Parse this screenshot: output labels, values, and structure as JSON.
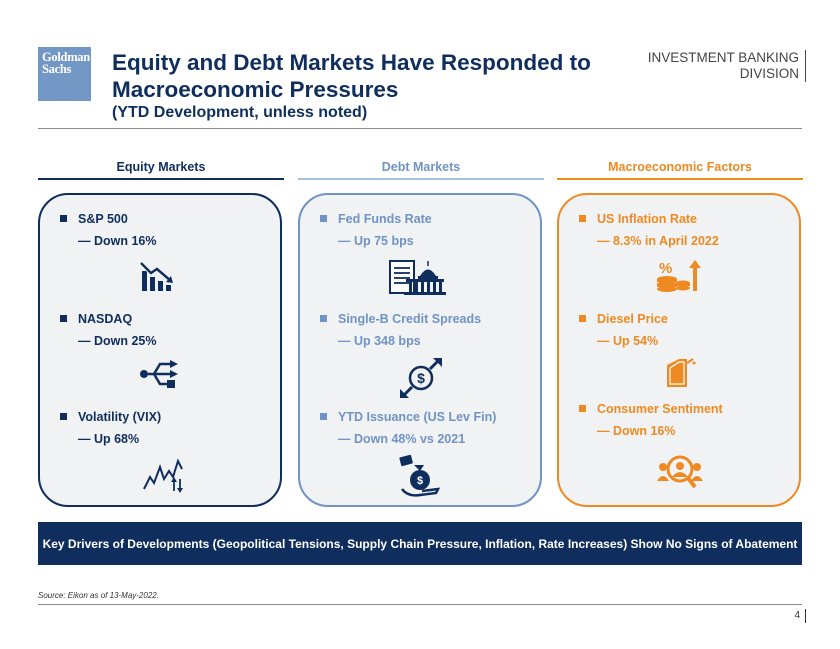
{
  "header": {
    "logo_line1": "Goldman",
    "logo_line2": "Sachs",
    "title": "Equity and Debt Markets Have Responded to Macroeconomic Pressures",
    "subtitle": "(YTD Development, unless noted)",
    "division_line1": "INVESTMENT BANKING",
    "division_line2": "DIVISION"
  },
  "columns": [
    {
      "heading": "Equity Markets",
      "items": [
        {
          "title": "S&P 500",
          "value": "— Down 16%",
          "icon": "chart-down-icon"
        },
        {
          "title": "NASDAQ",
          "value": "— Down 25%",
          "icon": "network-icon"
        },
        {
          "title": "Volatility (VIX)",
          "value": "— Up 68%",
          "icon": "volatility-icon"
        }
      ]
    },
    {
      "heading": "Debt Markets",
      "items": [
        {
          "title": "Fed Funds Rate",
          "value": "— Up 75 bps",
          "icon": "capitol-document-icon"
        },
        {
          "title": "Single-B Credit Spreads",
          "value": "— Up 348 bps",
          "icon": "dollar-arrows-icon"
        },
        {
          "title": "YTD Issuance (US Lev Fin)",
          "value": "— Down 48% vs 2021",
          "icon": "money-bag-hand-icon"
        }
      ]
    },
    {
      "heading": "Macroeconomic Factors",
      "items": [
        {
          "title": "US Inflation Rate",
          "value": "— 8.3% in April 2022",
          "icon": "inflation-icon"
        },
        {
          "title": "Diesel Price",
          "value": "— Up 54%",
          "icon": "fuel-can-icon"
        },
        {
          "title": "Consumer Sentiment",
          "value": "— Down 16%",
          "icon": "consumer-search-icon"
        }
      ]
    }
  ],
  "banner": "Key Drivers of Developments (Geopolitical Tensions, Supply Chain Pressure, Inflation, Rate Increases) Show No Signs of Abatement",
  "footer": {
    "source": "Source: Eikon as of 13-May-2022.",
    "page": "4"
  },
  "colors": {
    "navy": "#0f2e5e",
    "light_blue": "#6f93c5",
    "orange": "#ee8a21",
    "card_bg": "#f1f2f4"
  }
}
